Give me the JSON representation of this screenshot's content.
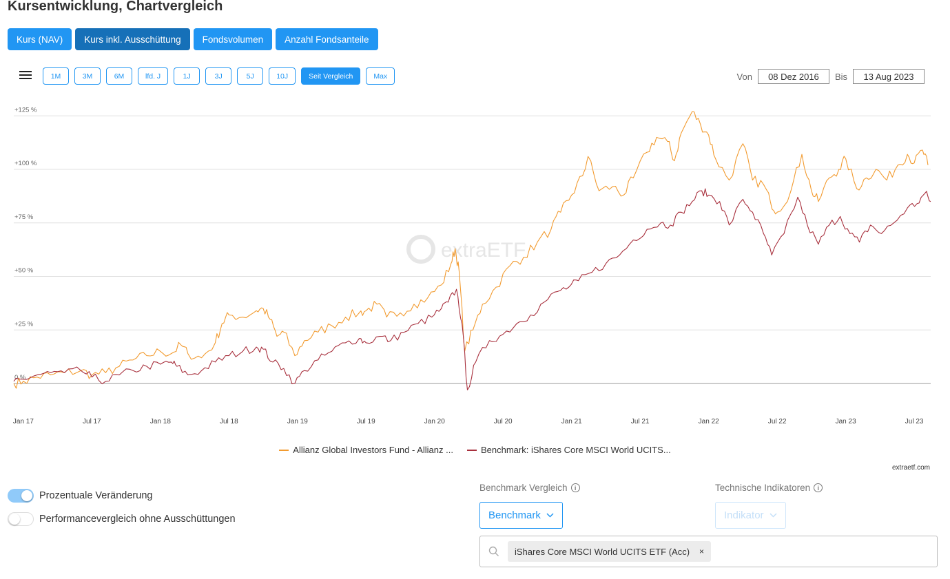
{
  "page": {
    "title": "Kursentwicklung, Chartvergleich"
  },
  "tabs": [
    {
      "label": "Kurs (NAV)",
      "active": false
    },
    {
      "label": "Kurs inkl. Ausschüttung",
      "active": true
    },
    {
      "label": "Fondsvolumen",
      "active": false
    },
    {
      "label": "Anzahl Fondsanteile",
      "active": false
    }
  ],
  "range_buttons": [
    {
      "label": "1M",
      "active": false
    },
    {
      "label": "3M",
      "active": false
    },
    {
      "label": "6M",
      "active": false
    },
    {
      "label": "lfd. J",
      "active": false
    },
    {
      "label": "1J",
      "active": false
    },
    {
      "label": "3J",
      "active": false
    },
    {
      "label": "5J",
      "active": false
    },
    {
      "label": "10J",
      "active": false
    },
    {
      "label": "Seit Vergleich",
      "active": true
    },
    {
      "label": "Max",
      "active": false
    }
  ],
  "date_range": {
    "from_label": "Von",
    "from_value": "08 Dez 2016",
    "to_label": "Bis",
    "to_value": "13 Aug 2023"
  },
  "chart_data": {
    "type": "line",
    "title": "",
    "xlabel": "",
    "ylabel": "",
    "watermark": "extraETF",
    "y_ticks": [
      "+125 %",
      "+100 %",
      "+75 %",
      "+50 %",
      "+25 %",
      "0 %"
    ],
    "y_tick_values": [
      125,
      100,
      75,
      50,
      25,
      0
    ],
    "ylim": [
      -4,
      130
    ],
    "x_ticks": [
      "Jan 17",
      "Jul 17",
      "Jan 18",
      "Jul 18",
      "Jan 19",
      "Jul 19",
      "Jan 20",
      "Jul 20",
      "Jan 21",
      "Jul 21",
      "Jan 22",
      "Jul 22",
      "Jan 23",
      "Jul 23"
    ],
    "x_tick_values": [
      2017.0,
      2017.5,
      2018.0,
      2018.5,
      2019.0,
      2019.5,
      2020.0,
      2020.5,
      2021.0,
      2021.5,
      2022.0,
      2022.5,
      2023.0,
      2023.5
    ],
    "xlim": [
      2016.93,
      2023.62
    ],
    "grid": true,
    "legend_position": "bottom",
    "series": [
      {
        "name": "Allianz Global Investors Fund - Allianz ...",
        "color": "#f29b30",
        "points": [
          [
            2016.93,
            0
          ],
          [
            2017.0,
            1
          ],
          [
            2017.1,
            3
          ],
          [
            2017.2,
            4
          ],
          [
            2017.3,
            5
          ],
          [
            2017.42,
            6
          ],
          [
            2017.5,
            4
          ],
          [
            2017.6,
            5
          ],
          [
            2017.7,
            8
          ],
          [
            2017.8,
            11
          ],
          [
            2017.9,
            13
          ],
          [
            2018.0,
            15
          ],
          [
            2018.08,
            14
          ],
          [
            2018.15,
            18
          ],
          [
            2018.2,
            14
          ],
          [
            2018.3,
            12
          ],
          [
            2018.4,
            19
          ],
          [
            2018.45,
            28
          ],
          [
            2018.5,
            32
          ],
          [
            2018.6,
            31
          ],
          [
            2018.7,
            34
          ],
          [
            2018.75,
            35
          ],
          [
            2018.8,
            30
          ],
          [
            2018.85,
            22
          ],
          [
            2018.9,
            24
          ],
          [
            2018.98,
            13
          ],
          [
            2019.05,
            20
          ],
          [
            2019.15,
            24
          ],
          [
            2019.25,
            27
          ],
          [
            2019.35,
            31
          ],
          [
            2019.45,
            33
          ],
          [
            2019.5,
            34
          ],
          [
            2019.58,
            37
          ],
          [
            2019.65,
            31
          ],
          [
            2019.75,
            33
          ],
          [
            2019.85,
            37
          ],
          [
            2019.95,
            40
          ],
          [
            2020.05,
            46
          ],
          [
            2020.12,
            56
          ],
          [
            2020.15,
            63
          ],
          [
            2020.18,
            52
          ],
          [
            2020.22,
            15
          ],
          [
            2020.28,
            25
          ],
          [
            2020.35,
            37
          ],
          [
            2020.45,
            45
          ],
          [
            2020.55,
            55
          ],
          [
            2020.65,
            59
          ],
          [
            2020.75,
            66
          ],
          [
            2020.85,
            72
          ],
          [
            2020.92,
            80
          ],
          [
            2021.0,
            88
          ],
          [
            2021.08,
            97
          ],
          [
            2021.12,
            106
          ],
          [
            2021.2,
            90
          ],
          [
            2021.3,
            92
          ],
          [
            2021.38,
            88
          ],
          [
            2021.45,
            96
          ],
          [
            2021.55,
            108
          ],
          [
            2021.62,
            115
          ],
          [
            2021.7,
            113
          ],
          [
            2021.75,
            104
          ],
          [
            2021.8,
            117
          ],
          [
            2021.88,
            127
          ],
          [
            2021.94,
            121
          ],
          [
            2022.0,
            116
          ],
          [
            2022.05,
            105
          ],
          [
            2022.15,
            95
          ],
          [
            2022.25,
            112
          ],
          [
            2022.32,
            95
          ],
          [
            2022.4,
            93
          ],
          [
            2022.45,
            85
          ],
          [
            2022.5,
            80
          ],
          [
            2022.6,
            90
          ],
          [
            2022.68,
            107
          ],
          [
            2022.75,
            90
          ],
          [
            2022.8,
            85
          ],
          [
            2022.88,
            96
          ],
          [
            2022.95,
            100
          ],
          [
            2023.0,
            105
          ],
          [
            2023.08,
            91
          ],
          [
            2023.15,
            96
          ],
          [
            2023.22,
            100
          ],
          [
            2023.3,
            95
          ],
          [
            2023.38,
            102
          ],
          [
            2023.45,
            107
          ],
          [
            2023.5,
            103
          ],
          [
            2023.56,
            109
          ],
          [
            2023.6,
            102
          ]
        ]
      },
      {
        "name": "Benchmark: iShares Core MSCI World UCITS...",
        "color": "#a8303d",
        "points": [
          [
            2016.93,
            1
          ],
          [
            2017.0,
            2
          ],
          [
            2017.1,
            4
          ],
          [
            2017.2,
            5
          ],
          [
            2017.3,
            5
          ],
          [
            2017.42,
            6
          ],
          [
            2017.5,
            3
          ],
          [
            2017.6,
            1
          ],
          [
            2017.7,
            4
          ],
          [
            2017.8,
            6
          ],
          [
            2017.9,
            8
          ],
          [
            2018.0,
            9
          ],
          [
            2018.08,
            10
          ],
          [
            2018.12,
            8
          ],
          [
            2018.2,
            4
          ],
          [
            2018.3,
            6
          ],
          [
            2018.4,
            10
          ],
          [
            2018.5,
            13
          ],
          [
            2018.6,
            15
          ],
          [
            2018.7,
            17
          ],
          [
            2018.75,
            16
          ],
          [
            2018.82,
            10
          ],
          [
            2018.9,
            7
          ],
          [
            2018.98,
            0
          ],
          [
            2019.05,
            6
          ],
          [
            2019.15,
            11
          ],
          [
            2019.25,
            15
          ],
          [
            2019.35,
            19
          ],
          [
            2019.45,
            21
          ],
          [
            2019.5,
            19
          ],
          [
            2019.6,
            22
          ],
          [
            2019.68,
            20
          ],
          [
            2019.78,
            24
          ],
          [
            2019.88,
            28
          ],
          [
            2019.98,
            31
          ],
          [
            2020.05,
            35
          ],
          [
            2020.1,
            38
          ],
          [
            2020.16,
            44
          ],
          [
            2020.2,
            28
          ],
          [
            2020.24,
            -3
          ],
          [
            2020.3,
            10
          ],
          [
            2020.4,
            20
          ],
          [
            2020.5,
            23
          ],
          [
            2020.6,
            28
          ],
          [
            2020.7,
            32
          ],
          [
            2020.8,
            38
          ],
          [
            2020.9,
            43
          ],
          [
            2020.98,
            45
          ],
          [
            2021.05,
            48
          ],
          [
            2021.15,
            52
          ],
          [
            2021.25,
            56
          ],
          [
            2021.35,
            60
          ],
          [
            2021.45,
            67
          ],
          [
            2021.55,
            72
          ],
          [
            2021.65,
            75
          ],
          [
            2021.72,
            74
          ],
          [
            2021.8,
            80
          ],
          [
            2021.88,
            85
          ],
          [
            2021.95,
            90
          ],
          [
            2022.0,
            88
          ],
          [
            2022.08,
            85
          ],
          [
            2022.15,
            74
          ],
          [
            2022.25,
            86
          ],
          [
            2022.32,
            80
          ],
          [
            2022.4,
            70
          ],
          [
            2022.46,
            60
          ],
          [
            2022.55,
            70
          ],
          [
            2022.65,
            87
          ],
          [
            2022.72,
            74
          ],
          [
            2022.8,
            65
          ],
          [
            2022.88,
            74
          ],
          [
            2022.96,
            78
          ],
          [
            2023.03,
            70
          ],
          [
            2023.1,
            66
          ],
          [
            2023.18,
            74
          ],
          [
            2023.26,
            70
          ],
          [
            2023.35,
            75
          ],
          [
            2023.45,
            82
          ],
          [
            2023.52,
            84
          ],
          [
            2023.58,
            89
          ],
          [
            2023.62,
            85
          ]
        ]
      }
    ]
  },
  "credit": "extraetf.com",
  "toggles": [
    {
      "label": "Prozentuale Veränderung",
      "on": true
    },
    {
      "label": "Performancevergleich ohne Ausschüttungen",
      "on": false
    }
  ],
  "benchmark": {
    "section_label": "Benchmark Vergleich",
    "dropdown_label": "Benchmark",
    "chip_label": "iShares Core MSCI World UCITS ETF (Acc)",
    "chip_close": "×"
  },
  "indicators": {
    "section_label": "Technische Indikatoren",
    "dropdown_label": "Indikator"
  },
  "icons": {
    "info": "ⓘ",
    "search": "search-icon",
    "menu": "hamburger-icon"
  }
}
